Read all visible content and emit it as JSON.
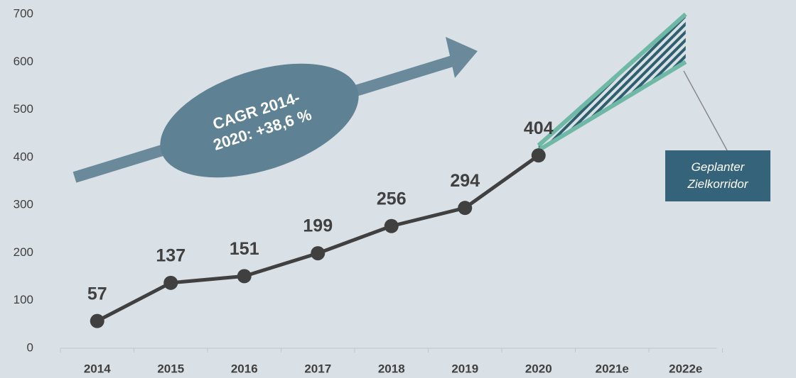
{
  "chart_data": {
    "type": "line",
    "categories": [
      "2014",
      "2015",
      "2016",
      "2017",
      "2018",
      "2019",
      "2020",
      "2021e",
      "2022e"
    ],
    "values": [
      57,
      137,
      151,
      199,
      256,
      294,
      404,
      null,
      null
    ],
    "color": "#404040",
    "ylim": [
      0,
      700
    ],
    "yticks": [
      0,
      100,
      200,
      300,
      400,
      500,
      600,
      700
    ],
    "annotation": "CAGR 2014-2020: +38,6 %",
    "corridor": {
      "label": "Geplanter Zielkorridor",
      "color": "#6fb8a5",
      "upper": [
        null,
        null,
        null,
        null,
        null,
        null,
        425,
        null,
        700
      ],
      "lower": [
        null,
        null,
        null,
        null,
        null,
        null,
        415,
        null,
        600
      ]
    }
  }
}
